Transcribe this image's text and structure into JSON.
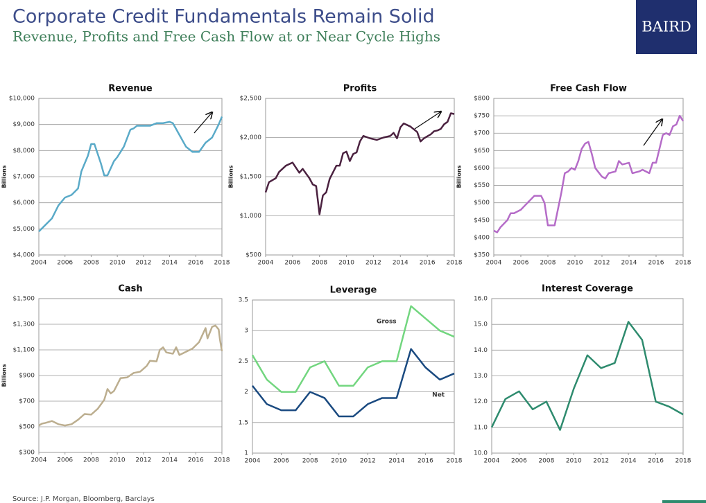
{
  "header": {
    "title": "Corporate Credit Fundamentals Remain Solid",
    "subtitle": "Revenue, Profits and Free Cash Flow at or Near Cycle Highs",
    "logo": "BAIRD"
  },
  "source": "Source: J.P. Morgan, Bloomberg, Barclays",
  "chart_data": [
    {
      "type": "line",
      "title": "Revenue",
      "ylabel": "Billions",
      "color": "#5aaac8",
      "x": [
        2004,
        2004.5,
        2005,
        2005.5,
        2006,
        2006.5,
        2007,
        2007.25,
        2007.75,
        2008,
        2008.25,
        2008.75,
        2009,
        2009.25,
        2009.75,
        2010,
        2010.5,
        2011,
        2011.25,
        2011.5,
        2012,
        2012.5,
        2013,
        2013.5,
        2014,
        2014.25,
        2014.75,
        2015.25,
        2015.75,
        2016.25,
        2016.75,
        2017.25,
        2017.75,
        2018
      ],
      "values": [
        4900,
        5150,
        5400,
        5900,
        6200,
        6300,
        6550,
        7200,
        7800,
        8250,
        8250,
        7500,
        7050,
        7050,
        7600,
        7750,
        8150,
        8800,
        8850,
        8950,
        8950,
        8950,
        9050,
        9050,
        9100,
        9050,
        8600,
        8150,
        7950,
        7950,
        8300,
        8500,
        9000,
        9300
      ],
      "xlim": [
        2004,
        2018
      ],
      "xticks": [
        2004,
        2006,
        2008,
        2010,
        2012,
        2014,
        2016,
        2018
      ],
      "ylim": [
        4000,
        10000
      ],
      "yticks": [
        {
          "value": 4000,
          "label": "$4,000"
        },
        {
          "value": 5000,
          "label": "$5,000"
        },
        {
          "value": 6000,
          "label": "$6,000"
        },
        {
          "value": 7000,
          "label": "$7,000"
        },
        {
          "value": 8000,
          "label": "$8,000"
        },
        {
          "value": 9000,
          "label": "$9,000"
        },
        {
          "value": 10000,
          "label": "$10,000"
        }
      ],
      "grid": true
    },
    {
      "type": "line",
      "title": "Profits",
      "ylabel": "Billions",
      "color": "#4b2240",
      "x": [
        2004,
        2004.25,
        2004.75,
        2005,
        2005.5,
        2006,
        2006.5,
        2006.75,
        2007.25,
        2007.5,
        2007.75,
        2008,
        2008.25,
        2008.5,
        2008.75,
        2009.25,
        2009.5,
        2009.75,
        2010,
        2010.25,
        2010.5,
        2010.75,
        2011,
        2011.25,
        2011.75,
        2012.25,
        2012.75,
        2013.25,
        2013.5,
        2013.75,
        2014,
        2014.25,
        2014.75,
        2015.25,
        2015.5,
        2015.75,
        2016.25,
        2016.5,
        2016.75,
        2017,
        2017.25,
        2017.5,
        2017.75,
        2018
      ],
      "values": [
        1300,
        1430,
        1480,
        1560,
        1640,
        1680,
        1550,
        1600,
        1480,
        1400,
        1380,
        1020,
        1260,
        1300,
        1470,
        1640,
        1640,
        1800,
        1820,
        1700,
        1790,
        1810,
        1950,
        2020,
        1990,
        1970,
        2000,
        2020,
        2060,
        1990,
        2130,
        2180,
        2140,
        2070,
        1950,
        1990,
        2040,
        2080,
        2090,
        2110,
        2170,
        2200,
        2310,
        2300
      ],
      "xlim": [
        2004,
        2018
      ],
      "xticks": [
        2004,
        2006,
        2008,
        2010,
        2012,
        2014,
        2016,
        2018
      ],
      "ylim": [
        500,
        2500
      ],
      "yticks": [
        {
          "value": 500,
          "label": "$500"
        },
        {
          "value": 1000,
          "label": "$1,000"
        },
        {
          "value": 1500,
          "label": "$1,500"
        },
        {
          "value": 2000,
          "label": "$2,000"
        },
        {
          "value": 2500,
          "label": "$2,500"
        }
      ],
      "grid": true
    },
    {
      "type": "line",
      "title": "Free Cash Flow",
      "ylabel": "Billions",
      "color": "#b56cc8",
      "x": [
        2004,
        2004.25,
        2004.5,
        2005,
        2005.25,
        2005.5,
        2006,
        2006.25,
        2006.5,
        2007,
        2007.5,
        2007.75,
        2008,
        2008.5,
        2009,
        2009.25,
        2009.5,
        2009.75,
        2010,
        2010.25,
        2010.5,
        2010.75,
        2011,
        2011.25,
        2011.5,
        2012,
        2012.25,
        2012.5,
        2013,
        2013.25,
        2013.5,
        2014,
        2014.25,
        2014.75,
        2015,
        2015.5,
        2015.75,
        2016,
        2016.5,
        2016.75,
        2017,
        2017.25,
        2017.5,
        2017.75,
        2018
      ],
      "values": [
        420,
        415,
        430,
        450,
        470,
        470,
        480,
        490,
        500,
        520,
        520,
        500,
        435,
        435,
        530,
        585,
        590,
        600,
        595,
        620,
        655,
        670,
        675,
        640,
        600,
        575,
        570,
        585,
        590,
        620,
        610,
        615,
        585,
        590,
        595,
        585,
        615,
        615,
        695,
        700,
        695,
        720,
        725,
        750,
        735
      ],
      "xlim": [
        2004,
        2018
      ],
      "xticks": [
        2004,
        2006,
        2008,
        2010,
        2012,
        2014,
        2016,
        2018
      ],
      "ylim": [
        350,
        800
      ],
      "yticks": [
        {
          "value": 350,
          "label": "$350"
        },
        {
          "value": 400,
          "label": "$400"
        },
        {
          "value": 450,
          "label": "$450"
        },
        {
          "value": 500,
          "label": "$500"
        },
        {
          "value": 550,
          "label": "$550"
        },
        {
          "value": 600,
          "label": "$600"
        },
        {
          "value": 650,
          "label": "$650"
        },
        {
          "value": 700,
          "label": "$700"
        },
        {
          "value": 750,
          "label": "$750"
        },
        {
          "value": 800,
          "label": "$800"
        }
      ],
      "grid": true
    },
    {
      "type": "line",
      "title": "Cash",
      "ylabel": "Billions",
      "color": "#bcae8f",
      "x": [
        2004,
        2004.25,
        2004.5,
        2005,
        2005.5,
        2006,
        2006.5,
        2007,
        2007.5,
        2008,
        2008.5,
        2009,
        2009.25,
        2009.5,
        2009.75,
        2010.25,
        2010.75,
        2011.25,
        2011.75,
        2012.25,
        2012.5,
        2013,
        2013.25,
        2013.5,
        2013.75,
        2014.25,
        2014.5,
        2014.75,
        2015.25,
        2015.75,
        2016.25,
        2016.75,
        2016.9,
        2017.25,
        2017.5,
        2017.75,
        2017.85,
        2018
      ],
      "values": [
        510,
        525,
        530,
        545,
        520,
        510,
        520,
        555,
        600,
        595,
        640,
        710,
        795,
        760,
        780,
        880,
        885,
        920,
        930,
        975,
        1015,
        1010,
        1100,
        1120,
        1080,
        1070,
        1120,
        1060,
        1085,
        1110,
        1160,
        1270,
        1190,
        1280,
        1290,
        1260,
        1180,
        1090
      ],
      "xlim": [
        2004,
        2018
      ],
      "xticks": [
        2004,
        2006,
        2008,
        2010,
        2012,
        2014,
        2016,
        2018
      ],
      "ylim": [
        300,
        1500
      ],
      "yticks": [
        {
          "value": 300,
          "label": "$300"
        },
        {
          "value": 500,
          "label": "$500"
        },
        {
          "value": 700,
          "label": "$700"
        },
        {
          "value": 900,
          "label": "$900"
        },
        {
          "value": 1100,
          "label": "$1,100"
        },
        {
          "value": 1300,
          "label": "$1,300"
        },
        {
          "value": 1500,
          "label": "$1,500"
        }
      ],
      "grid": true
    },
    {
      "type": "line",
      "title": "Leverage",
      "x": [
        2004,
        2005,
        2006,
        2007,
        2008,
        2009,
        2010,
        2011,
        2012,
        2013,
        2014,
        2015,
        2016,
        2017,
        2018
      ],
      "series": [
        {
          "name": "Gross",
          "color": "#72d67f",
          "values": [
            2.6,
            2.2,
            2.0,
            2.0,
            2.4,
            2.5,
            2.1,
            2.1,
            2.4,
            2.5,
            2.5,
            3.4,
            3.2,
            3.0,
            2.9
          ]
        },
        {
          "name": "Net",
          "color": "#1a4a80",
          "values": [
            2.1,
            1.8,
            1.7,
            1.7,
            2.0,
            1.9,
            1.6,
            1.6,
            1.8,
            1.9,
            1.9,
            2.7,
            2.4,
            2.2,
            2.3
          ]
        }
      ],
      "xlim": [
        2004,
        2018
      ],
      "xticks": [
        2004,
        2006,
        2008,
        2010,
        2012,
        2014,
        2016,
        2018
      ],
      "ylim": [
        1,
        3.5
      ],
      "yticks": [
        1,
        1.5,
        2,
        2.5,
        3,
        3.5
      ],
      "grid": true
    },
    {
      "type": "line",
      "title": "Interest Coverage",
      "color": "#2e8b6e",
      "x": [
        2004,
        2005,
        2006,
        2007,
        2008,
        2009,
        2010,
        2011,
        2012,
        2013,
        2014,
        2015,
        2016,
        2017,
        2018
      ],
      "values": [
        11.0,
        12.1,
        12.4,
        11.7,
        12.0,
        10.9,
        12.5,
        13.8,
        13.3,
        13.5,
        15.1,
        14.4,
        12.0,
        11.8,
        11.5
      ],
      "xlim": [
        2004,
        2018
      ],
      "xticks": [
        2004,
        2006,
        2008,
        2010,
        2012,
        2014,
        2016,
        2018
      ],
      "ylim": [
        10,
        16
      ],
      "yticks": [
        {
          "value": 10,
          "label": "10.0"
        },
        {
          "value": 11,
          "label": "11.0"
        },
        {
          "value": 12,
          "label": "12.0"
        },
        {
          "value": 13,
          "label": "13.0"
        },
        {
          "value": 14,
          "label": "14.0"
        },
        {
          "value": 15,
          "label": "15.0"
        },
        {
          "value": 16,
          "label": "16.0"
        }
      ],
      "grid": true
    }
  ]
}
